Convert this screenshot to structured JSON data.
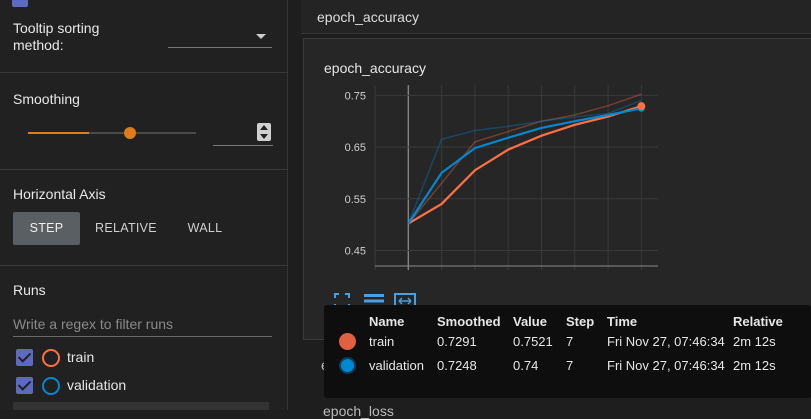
{
  "sidebar": {
    "tooltip_sorting": {
      "label": "Tooltip sorting\nmethod:",
      "value": ""
    },
    "smoothing": {
      "label": "Smoothing",
      "level": 0.6,
      "value": ""
    },
    "horizontal_axis": {
      "label": "Horizontal Axis",
      "options": [
        "STEP",
        "RELATIVE",
        "WALL"
      ],
      "selected": "STEP"
    },
    "runs": {
      "label": "Runs",
      "filter_placeholder": "Write a regex to filter runs",
      "items": [
        {
          "name": "train",
          "checked": true,
          "color": "#ff7043"
        },
        {
          "name": "validation",
          "checked": true,
          "color": "#0288d1"
        }
      ]
    }
  },
  "main": {
    "group_title": "epoch_accuracy",
    "card_title": "epoch_accuracy",
    "next_card_title": "e",
    "last_card_title": "epoch_loss"
  },
  "chart_data": {
    "type": "line",
    "title": "epoch_accuracy",
    "xlabel": "",
    "ylabel": "",
    "y_ticks": [
      "0.75",
      "0.65",
      "0.55",
      "0.45"
    ],
    "ylim": [
      0.42,
      0.77
    ],
    "xlim": [
      -1,
      7.5
    ],
    "grid": true,
    "series": [
      {
        "name": "train",
        "color": "#ff7043",
        "x": [
          0,
          1,
          2,
          3,
          4,
          5,
          6,
          7
        ],
        "smoothed": [
          0.502,
          0.54,
          0.605,
          0.645,
          0.672,
          0.693,
          0.709,
          0.7291
        ],
        "raw": [
          0.502,
          0.58,
          0.66,
          0.68,
          0.7,
          0.712,
          0.73,
          0.7521
        ]
      },
      {
        "name": "validation",
        "color": "#0288d1",
        "x": [
          0,
          1,
          2,
          3,
          4,
          5,
          6,
          7
        ],
        "smoothed": [
          0.502,
          0.6,
          0.648,
          0.668,
          0.687,
          0.7,
          0.712,
          0.7248
        ],
        "raw": [
          0.502,
          0.665,
          0.682,
          0.69,
          0.7,
          0.708,
          0.715,
          0.74
        ]
      }
    ]
  },
  "tooltip": {
    "headers": [
      "Name",
      "Smoothed",
      "Value",
      "Step",
      "Time",
      "Relative"
    ],
    "rows": [
      {
        "color": "#e06040",
        "name": "train",
        "smoothed": "0.7291",
        "value": "0.7521",
        "step": "7",
        "time": "Fri Nov 27, 07:46:34",
        "relative": "2m 12s"
      },
      {
        "color": "#0288d1",
        "name": "validation",
        "smoothed": "0.7248",
        "value": "0.74",
        "step": "7",
        "time": "Fri Nov 27, 07:46:34",
        "relative": "2m 12s"
      }
    ]
  },
  "icons": {
    "fit_domain": "fit-to-data-icon",
    "log_scale": "lines-icon",
    "fullscreen": "fullscreen-icon"
  }
}
